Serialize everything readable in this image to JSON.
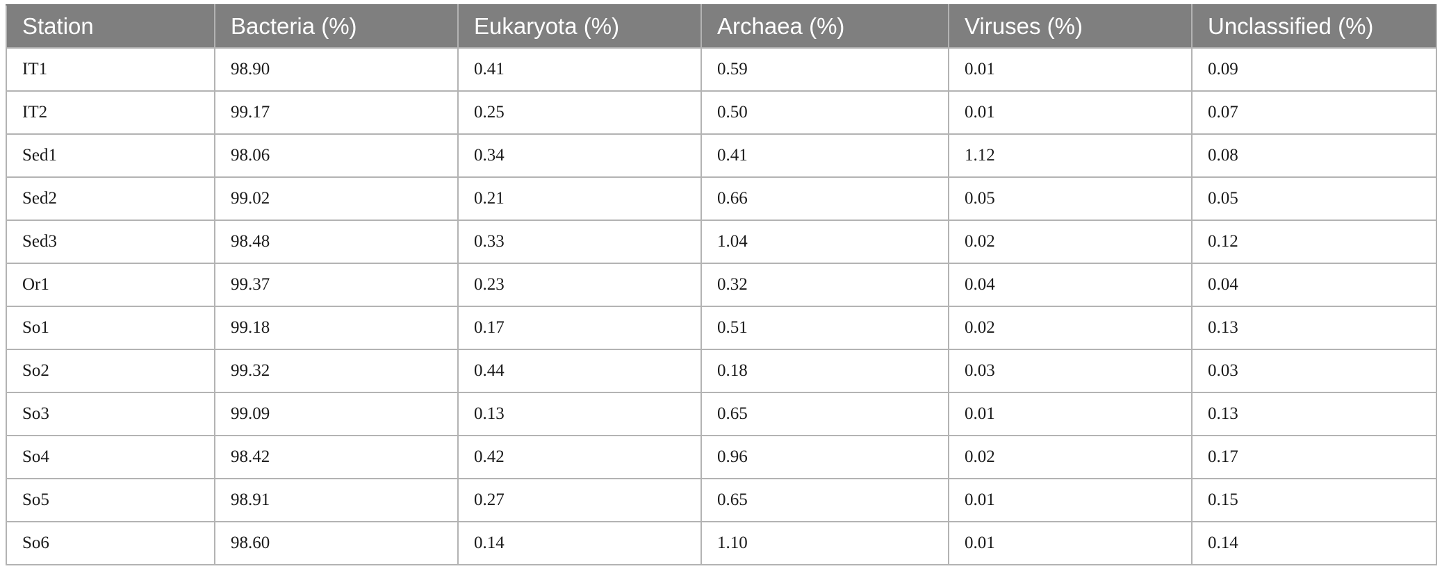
{
  "table": {
    "headers": [
      "Station",
      "Bacteria (%)",
      "Eukaryota (%)",
      "Archaea (%)",
      "Viruses (%)",
      "Unclassified (%)"
    ],
    "rows": [
      [
        "IT1",
        "98.90",
        "0.41",
        "0.59",
        "0.01",
        "0.09"
      ],
      [
        "IT2",
        "99.17",
        "0.25",
        "0.50",
        "0.01",
        "0.07"
      ],
      [
        "Sed1",
        "98.06",
        "0.34",
        "0.41",
        "1.12",
        "0.08"
      ],
      [
        "Sed2",
        "99.02",
        "0.21",
        "0.66",
        "0.05",
        "0.05"
      ],
      [
        "Sed3",
        "98.48",
        "0.33",
        "1.04",
        "0.02",
        "0.12"
      ],
      [
        "Or1",
        "99.37",
        "0.23",
        "0.32",
        "0.04",
        "0.04"
      ],
      [
        "So1",
        "99.18",
        "0.17",
        "0.51",
        "0.02",
        "0.13"
      ],
      [
        "So2",
        "99.32",
        "0.44",
        "0.18",
        "0.03",
        "0.03"
      ],
      [
        "So3",
        "99.09",
        "0.13",
        "0.65",
        "0.01",
        "0.13"
      ],
      [
        "So4",
        "98.42",
        "0.42",
        "0.96",
        "0.02",
        "0.17"
      ],
      [
        "So5",
        "98.91",
        "0.27",
        "0.65",
        "0.01",
        "0.15"
      ],
      [
        "So6",
        "98.60",
        "0.14",
        "1.10",
        "0.01",
        "0.14"
      ]
    ]
  },
  "colors": {
    "header_background": "#7f7f7f",
    "header_text": "#ffffff",
    "grid_line": "#b3b3b3"
  }
}
